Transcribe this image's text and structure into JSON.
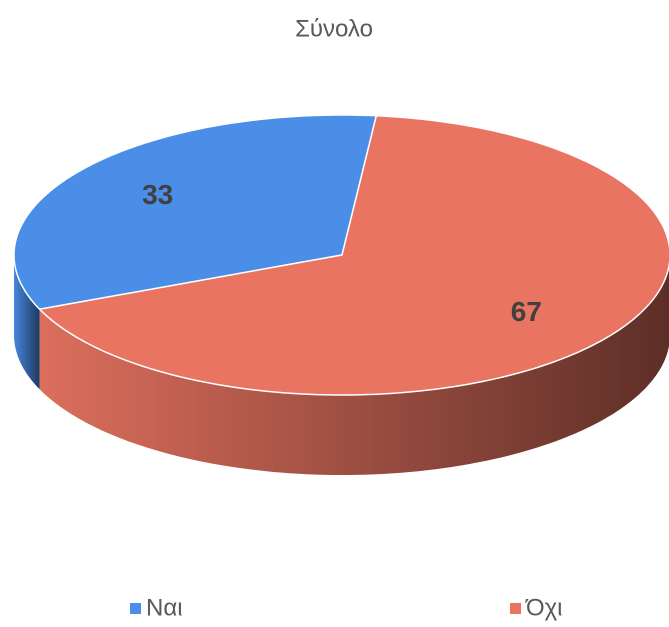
{
  "chart_data": {
    "type": "pie3d",
    "title": "Σύνολο",
    "categories": [
      "Ναι",
      "Όχι"
    ],
    "values": [
      33,
      67
    ],
    "colors": [
      "#4a8ee8",
      "#e87461"
    ],
    "legend": "bottom"
  }
}
